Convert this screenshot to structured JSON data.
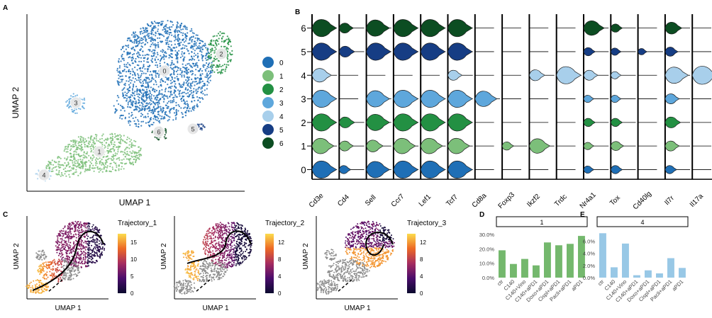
{
  "panels": {
    "A": {
      "letter": "A",
      "xlabel": "UMAP 1",
      "ylabel": "UMAP 2",
      "legend": [
        {
          "label": "0",
          "color": "#1f6fb6"
        },
        {
          "label": "1",
          "color": "#7cbf7a"
        },
        {
          "label": "2",
          "color": "#239043"
        },
        {
          "label": "3",
          "color": "#5ea7dc"
        },
        {
          "label": "4",
          "color": "#a8cfeb"
        },
        {
          "label": "5",
          "color": "#163d84"
        },
        {
          "label": "6",
          "color": "#0c4d22"
        }
      ],
      "cluster_labels": [
        "0",
        "1",
        "2",
        "3",
        "4",
        "5",
        "6"
      ]
    },
    "B": {
      "letter": "B",
      "genes": [
        "Cd3e",
        "Cd4",
        "Sell",
        "Ccr7",
        "Lef1",
        "Tcf7",
        "Cd8a",
        "Foxp3",
        "Ikzf2",
        "Trdc",
        "Nr4a1",
        "Tox",
        "Cd40lg",
        "Il7r",
        "Il17a"
      ],
      "clusters": [
        "6",
        "5",
        "4",
        "3",
        "2",
        "1",
        "0"
      ],
      "expression": [
        [
          0.95,
          0.55,
          0.9,
          0.95,
          0.95,
          0.95,
          0.0,
          0.0,
          0.0,
          0.0,
          0.8,
          0.45,
          0.0,
          0.65,
          0.0
        ],
        [
          0.95,
          0.6,
          0.95,
          0.95,
          0.95,
          0.95,
          0.0,
          0.0,
          0.0,
          0.0,
          0.45,
          0.4,
          0.35,
          0.5,
          0.0
        ],
        [
          0.75,
          0.0,
          0.0,
          0.0,
          0.0,
          0.55,
          0.0,
          0.0,
          0.6,
          0.95,
          0.55,
          0.4,
          0.0,
          0.9,
          1.0
        ],
        [
          0.95,
          0.0,
          0.9,
          0.95,
          0.95,
          0.95,
          0.85,
          0.0,
          0.0,
          0.0,
          0.4,
          0.4,
          0.0,
          0.55,
          0.0
        ],
        [
          0.95,
          0.6,
          0.9,
          0.95,
          0.95,
          0.95,
          0.0,
          0.0,
          0.0,
          0.0,
          0.45,
          0.45,
          0.0,
          0.6,
          0.0
        ],
        [
          0.85,
          0.55,
          0.65,
          0.85,
          0.85,
          0.85,
          0.0,
          0.45,
          0.8,
          0.0,
          0.4,
          0.5,
          0.0,
          0.55,
          0.0
        ],
        [
          0.95,
          0.45,
          0.9,
          0.95,
          0.95,
          0.95,
          0.0,
          0.0,
          0.0,
          0.0,
          0.4,
          0.45,
          0.0,
          0.45,
          0.0
        ]
      ]
    },
    "C": {
      "letter": "C",
      "plots": [
        {
          "title": "Trajectory_1",
          "ticks": [
            "15",
            "10",
            "5",
            "0"
          ],
          "xlabel": "UMAP 1",
          "ylabel": "UMAP 2"
        },
        {
          "title": "Trajectory_2",
          "ticks": [
            "12",
            "8",
            "4",
            "0"
          ],
          "xlabel": "UMAP 1",
          "ylabel": "UMAP 2"
        },
        {
          "title": "Trajectory_3",
          "ticks": [
            "12",
            "8",
            "4",
            "0"
          ],
          "xlabel": "UMAP 1",
          "ylabel": "UMAP 2"
        }
      ]
    },
    "D": {
      "letter": "D"
    },
    "E": {
      "letter": "E"
    }
  },
  "chart_data": [
    {
      "type": "bar",
      "panel": "D",
      "title": "1",
      "categories": [
        "ctr",
        "C140",
        "C140+Vino",
        "C140+aPD1",
        "Doxo+aPD1",
        "Cispl+aPD1",
        "Pacli+aPD1",
        "aPD1"
      ],
      "values": [
        19.0,
        9.5,
        13.0,
        8.5,
        24.5,
        22.5,
        23.5,
        29.0
      ],
      "yticks": [
        "0.0%",
        "10.0%",
        "20.0%",
        "30.0%"
      ],
      "ylim": [
        0,
        33
      ],
      "color": "#74b86d"
    },
    {
      "type": "bar",
      "panel": "E",
      "title": "4",
      "categories": [
        "ctr",
        "C140",
        "C140+Vino",
        "C140+aPD1",
        "Doxo+aPD1",
        "Cispl+aPD1",
        "Pacli+aPD1",
        "aPD1"
      ],
      "values": [
        7.3,
        1.7,
        5.6,
        0.4,
        1.2,
        0.7,
        3.2,
        1.6
      ],
      "yticks": [
        "0.0%",
        "2.0%",
        "4.0%",
        "6.0%"
      ],
      "ylim": [
        0,
        7.8
      ],
      "color": "#98c8e6"
    }
  ]
}
